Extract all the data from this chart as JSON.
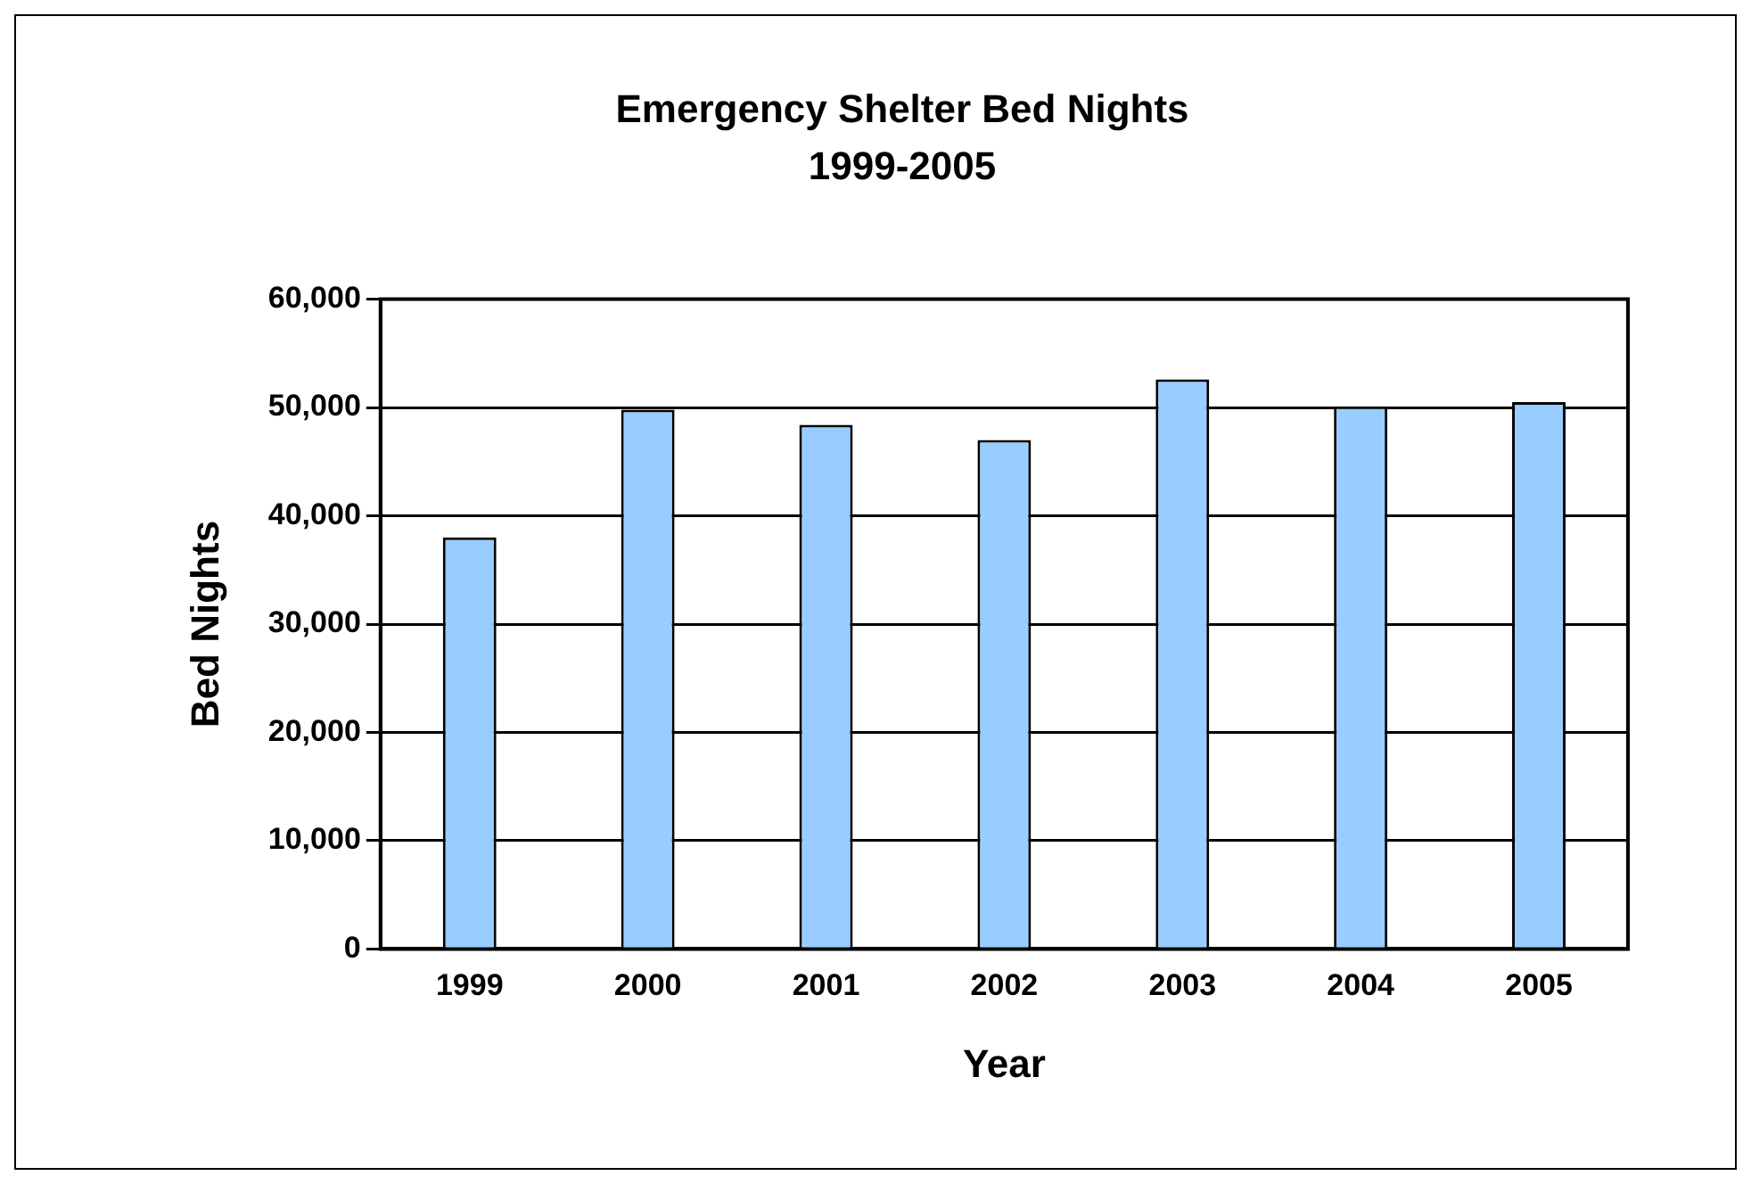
{
  "chart_data": {
    "type": "bar",
    "title": "Emergency Shelter Bed Nights",
    "subtitle": "1999-2005",
    "xlabel": "Year",
    "ylabel": "Bed Nights",
    "categories": [
      "1999",
      "2000",
      "2001",
      "2002",
      "2003",
      "2004",
      "2005"
    ],
    "values": [
      38000,
      49800,
      48400,
      47000,
      52600,
      50100,
      50500
    ],
    "color": "#99ccff",
    "ylim": [
      0,
      60000
    ],
    "yticks": [
      0,
      {
        "value": 10000,
        "label": "10,000"
      },
      {
        "value": 20000,
        "label": "20,000"
      },
      {
        "value": 30000,
        "label": "30,000"
      },
      {
        "value": 40000,
        "label": "40,000"
      },
      {
        "value": 50000,
        "label": "50,000"
      },
      {
        "value": 60000,
        "label": "60,000"
      }
    ],
    "grid": "y",
    "legend": false
  }
}
